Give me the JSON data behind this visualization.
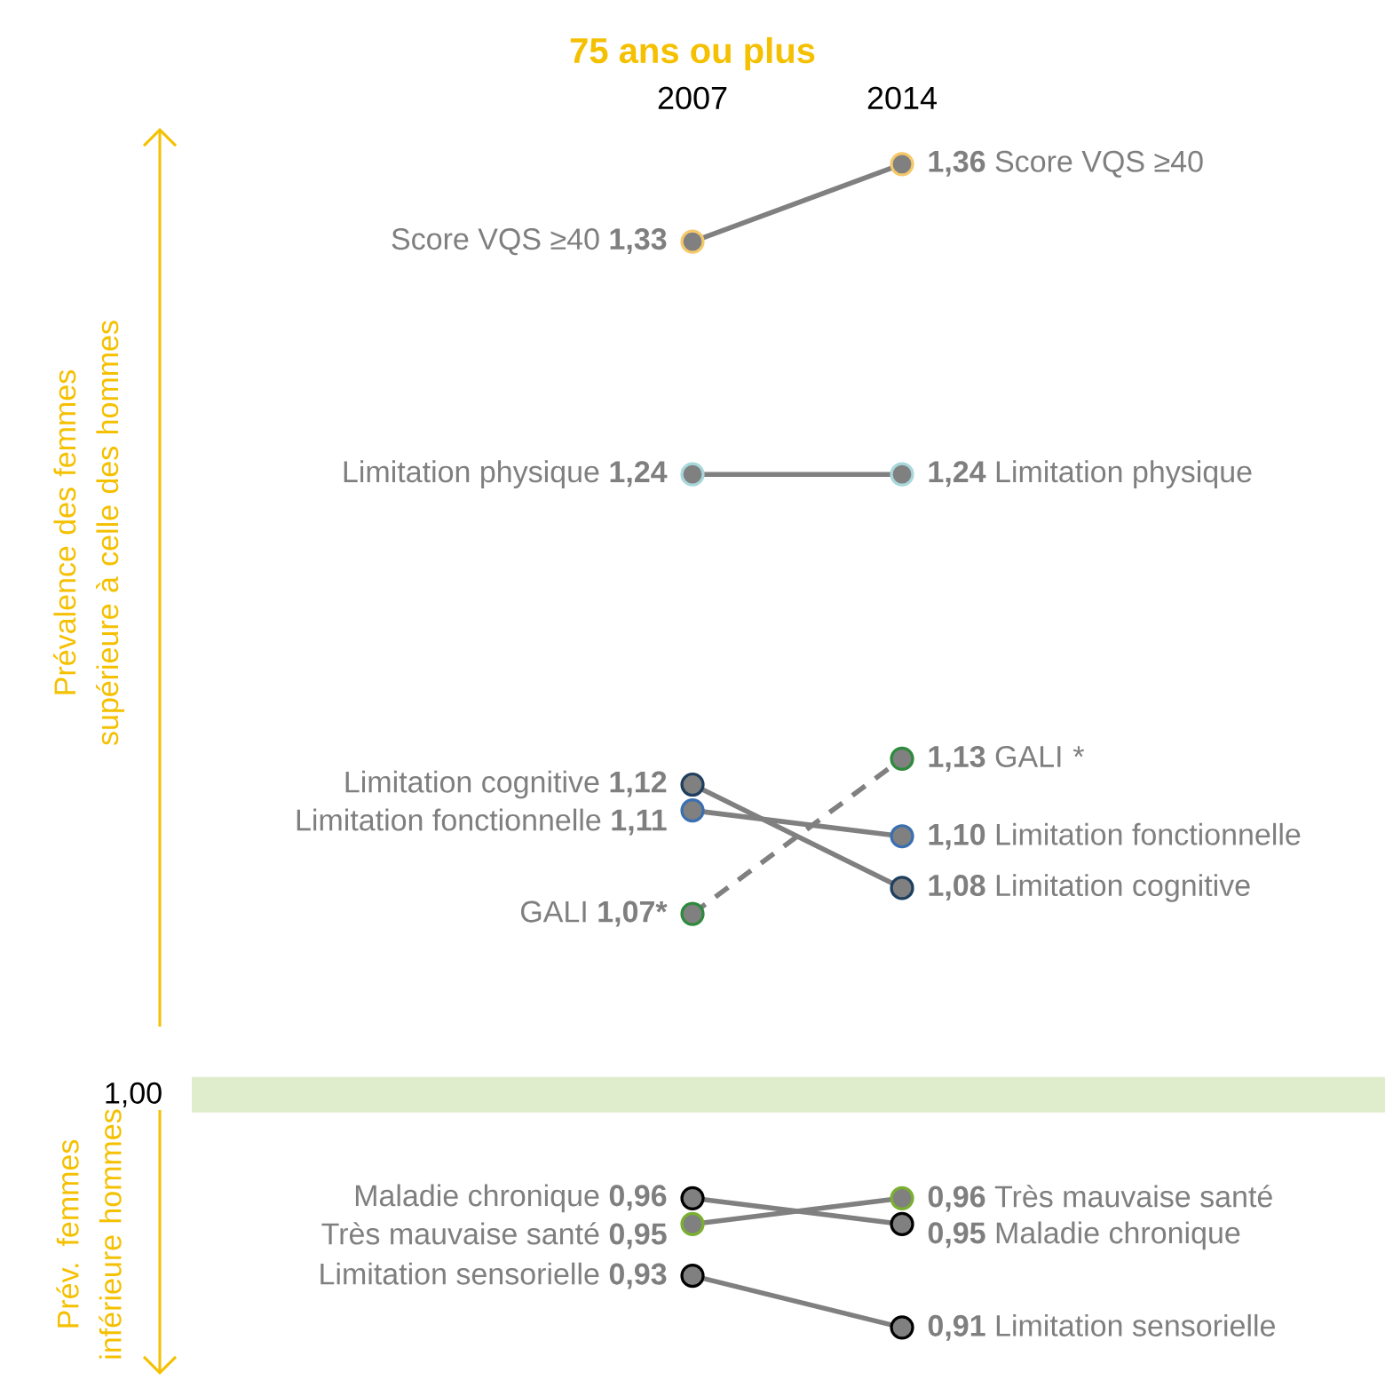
{
  "chart_data": {
    "type": "line",
    "title": "75 ans ou plus",
    "categories": [
      "2007",
      "2014"
    ],
    "marker": "circle",
    "tick_labels": "x",
    "series": [
      {
        "name": "Score VQS ≥40",
        "color": "#808080",
        "colors": [
          "#f5c86a",
          "#f5c86a"
        ],
        "values": [
          1.33,
          1.36
        ],
        "value_labels": [
          "1,33",
          "1,36"
        ]
      },
      {
        "name": "Limitation physique",
        "color": "#808080",
        "colors": [
          "#a8d8dc",
          "#a8d8dc"
        ],
        "values": [
          1.24,
          1.24
        ],
        "value_labels": [
          "1,24",
          "1,24"
        ]
      },
      {
        "name": "Limitation cognitive",
        "color": "#808080",
        "colors": [
          "#1f3f5f",
          "#1f3f5f"
        ],
        "values": [
          1.12,
          1.08
        ],
        "value_labels": [
          "1,12",
          "1,08"
        ]
      },
      {
        "name": "Limitation fonctionnelle",
        "color": "#808080",
        "colors": [
          "#3a6fb0",
          "#3a6fb0"
        ],
        "values": [
          1.11,
          1.1
        ],
        "value_labels": [
          "1,11",
          "1,10"
        ]
      },
      {
        "name": "GALI",
        "color": "#808080",
        "colors": [
          "#2e8b3e",
          "#2e8b3e"
        ],
        "values": [
          1.07,
          1.13
        ],
        "value_labels": [
          "1,07*",
          "1,13"
        ],
        "line_style": "dashed"
      },
      {
        "name": "Maladie chronique",
        "color": "#808080",
        "colors": [
          "#000000",
          "#000000"
        ],
        "values": [
          0.96,
          0.95
        ],
        "value_labels": [
          "0,96",
          "0,95"
        ]
      },
      {
        "name": "Très mauvaise santé",
        "color": "#808080",
        "colors": [
          "#7ab030",
          "#7ab030"
        ],
        "values": [
          0.95,
          0.96
        ],
        "value_labels": [
          "0,95",
          "0,96"
        ]
      },
      {
        "name": "Limitation sensorielle",
        "color": "#808080",
        "colors": [
          "#000000",
          "#000000"
        ],
        "values": [
          0.93,
          0.91
        ],
        "value_labels": [
          "0,93",
          "0,91"
        ]
      }
    ],
    "ref_lines": [
      {
        "axis": "y",
        "value": 1.0,
        "label": "1,00",
        "color": "#e0edcc"
      }
    ],
    "annotations": [
      "*",
      "Prévalence des  femmes supérieure à celle des hommes",
      "Prév.  femmes inférieure hommes"
    ]
  }
}
